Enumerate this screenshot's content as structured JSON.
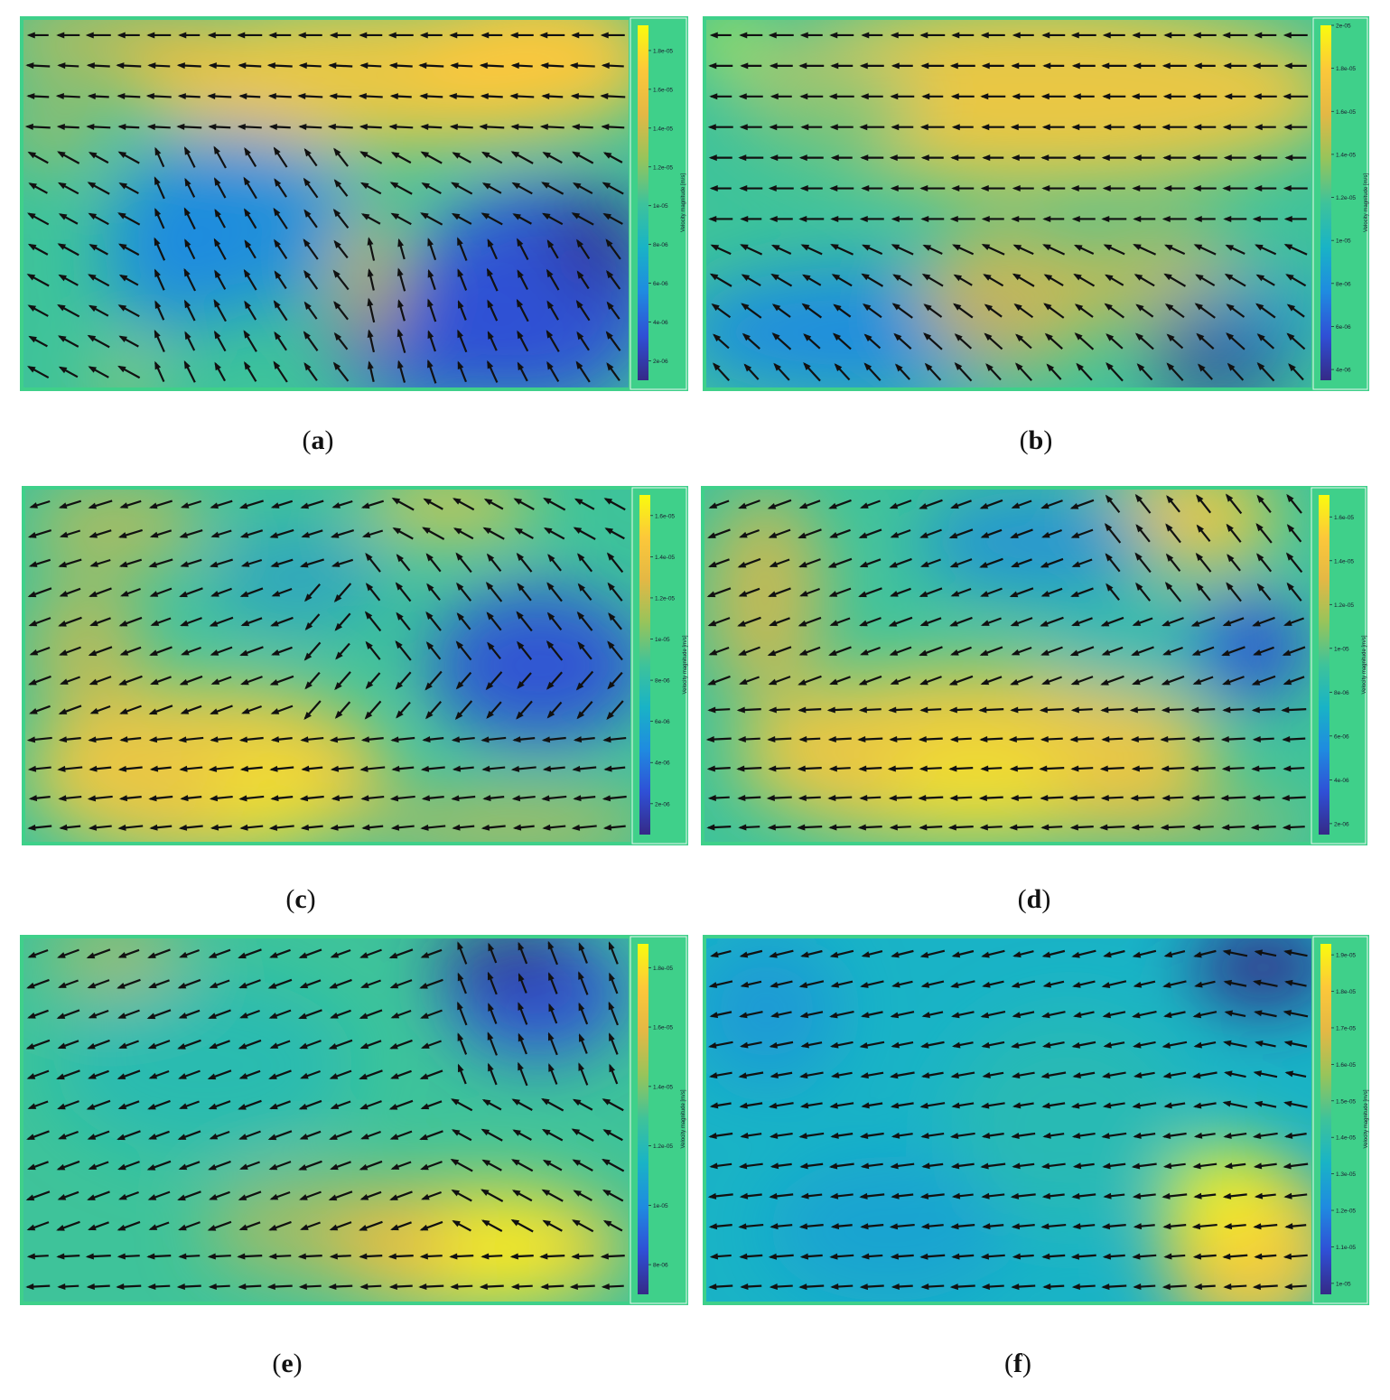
{
  "chart_data": [
    {
      "id": "a",
      "type": "heatmap",
      "caption_open": "(",
      "caption_letter": "a",
      "caption_close": ")",
      "colorbar_title": "Velocity magnitude [m/s]",
      "colorbar_ticks": [
        "2e-06",
        "4e-06",
        "6e-06",
        "8e-06",
        "1e-05",
        "1.2e-05",
        "1.4e-05",
        "1.6e-05",
        "1.8e-05"
      ],
      "colorbar_range": [
        1e-06,
        1.93e-05
      ],
      "field_description": "upper region mostly yellow-orange; lower-right deep blue; left-center blue; arrows point leftward, curving downward on the right in the lower half"
    },
    {
      "id": "b",
      "type": "heatmap",
      "caption_open": "(",
      "caption_letter": "b",
      "caption_close": ")",
      "colorbar_title": "Velocity magnitude [m/s]",
      "colorbar_ticks": [
        "4e-06",
        "6e-06",
        "8e-06",
        "1e-05",
        "1.2e-05",
        "1.4e-05",
        "1.6e-05",
        "1.8e-05",
        "2e-05"
      ],
      "colorbar_range": [
        3.5e-06,
        2e-05
      ],
      "field_description": "upper region orange-yellow, lower region blue; arrows leftward, diagonal down-left in lower center"
    },
    {
      "id": "c",
      "type": "heatmap",
      "caption_open": "(",
      "caption_letter": "c",
      "caption_close": ")",
      "colorbar_title": "Velocity magnitude [m/s]",
      "colorbar_ticks": [
        "2e-06",
        "4e-06",
        "6e-06",
        "8e-06",
        "1e-05",
        "1.2e-05",
        "1.4e-05",
        "1.6e-05"
      ],
      "colorbar_range": [
        5e-07,
        1.7e-05
      ],
      "field_description": "lower and left region yellow-orange; center cyan; right-center blue; arrows leftward, down-left in center"
    },
    {
      "id": "d",
      "type": "heatmap",
      "caption_open": "(",
      "caption_letter": "d",
      "caption_close": ")",
      "colorbar_title": "Velocity magnitude [m/s]",
      "colorbar_ticks": [
        "2e-06",
        "4e-06",
        "6e-06",
        "8e-06",
        "1e-05",
        "1.2e-05",
        "1.4e-05",
        "1.6e-05"
      ],
      "colorbar_range": [
        1.5e-06,
        1.7e-05
      ],
      "field_description": "lower half yellow-orange, upper center cyan-blue, right-middle blue; arrows leftward, down-left upper right"
    },
    {
      "id": "e",
      "type": "heatmap",
      "caption_open": "(",
      "caption_letter": "e",
      "caption_close": ")",
      "colorbar_title": "Velocity magnitude [m/s]",
      "colorbar_ticks": [
        "8e-06",
        "1e-05",
        "1.2e-05",
        "1.4e-05",
        "1.6e-05",
        "1.8e-05"
      ],
      "colorbar_range": [
        7e-06,
        1.88e-05
      ],
      "field_description": "mostly cyan-green, upper right blue, lower right yellow; arrows leftward-up-left, down-left on the upper right"
    },
    {
      "id": "f",
      "type": "heatmap",
      "caption_open": "(",
      "caption_letter": "f",
      "caption_close": ")",
      "colorbar_title": "Velocity magnitude [m/s]",
      "colorbar_ticks": [
        "1e-05",
        "1.1e-05",
        "1.2e-05",
        "1.3e-05",
        "1.4e-05",
        "1.5e-05",
        "1.6e-05",
        "1.7e-05",
        "1.8e-05",
        "1.9e-05"
      ],
      "colorbar_range": [
        9.7e-06,
        1.93e-05
      ],
      "field_description": "mostly cyan, right side yellow lower, upper right dark blue; arrows leftward"
    }
  ],
  "colors": {
    "frame": "#3fd08a",
    "arrow": "#111111",
    "arrow_highlight": "#f07a1e",
    "parula": [
      "#352a87",
      "#2f50d6",
      "#1f8be0",
      "#19b3c6",
      "#3ec39a",
      "#97c45b",
      "#e3b845",
      "#fcc83a",
      "#f9fb0e"
    ]
  }
}
